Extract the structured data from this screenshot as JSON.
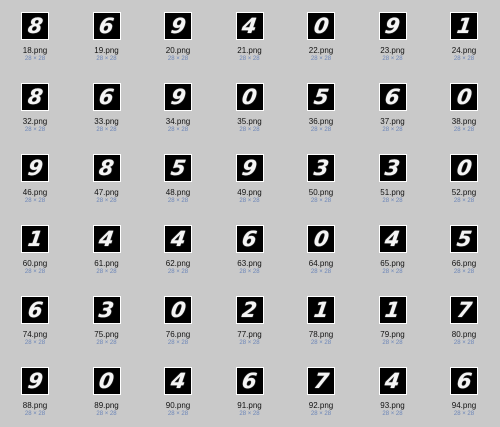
{
  "colors": {
    "background": "#c9c9c9",
    "dims_text": "#6b85b8"
  },
  "files": [
    {
      "name": "18.png",
      "dims": "28 × 28",
      "digit": "8"
    },
    {
      "name": "19.png",
      "dims": "28 × 28",
      "digit": "6"
    },
    {
      "name": "20.png",
      "dims": "28 × 28",
      "digit": "9"
    },
    {
      "name": "21.png",
      "dims": "28 × 28",
      "digit": "4"
    },
    {
      "name": "22.png",
      "dims": "28 × 28",
      "digit": "0"
    },
    {
      "name": "23.png",
      "dims": "28 × 28",
      "digit": "9"
    },
    {
      "name": "24.png",
      "dims": "28 × 28",
      "digit": "1"
    },
    {
      "name": "32.png",
      "dims": "28 × 28",
      "digit": "8"
    },
    {
      "name": "33.png",
      "dims": "28 × 28",
      "digit": "6"
    },
    {
      "name": "34.png",
      "dims": "28 × 28",
      "digit": "9"
    },
    {
      "name": "35.png",
      "dims": "28 × 28",
      "digit": "0"
    },
    {
      "name": "36.png",
      "dims": "28 × 28",
      "digit": "5"
    },
    {
      "name": "37.png",
      "dims": "28 × 28",
      "digit": "6"
    },
    {
      "name": "38.png",
      "dims": "28 × 28",
      "digit": "0"
    },
    {
      "name": "46.png",
      "dims": "28 × 28",
      "digit": "9"
    },
    {
      "name": "47.png",
      "dims": "28 × 28",
      "digit": "8"
    },
    {
      "name": "48.png",
      "dims": "28 × 28",
      "digit": "5"
    },
    {
      "name": "49.png",
      "dims": "28 × 28",
      "digit": "9"
    },
    {
      "name": "50.png",
      "dims": "28 × 28",
      "digit": "3"
    },
    {
      "name": "51.png",
      "dims": "28 × 28",
      "digit": "3"
    },
    {
      "name": "52.png",
      "dims": "28 × 28",
      "digit": "0"
    },
    {
      "name": "60.png",
      "dims": "28 × 28",
      "digit": "1"
    },
    {
      "name": "61.png",
      "dims": "28 × 28",
      "digit": "4"
    },
    {
      "name": "62.png",
      "dims": "28 × 28",
      "digit": "4"
    },
    {
      "name": "63.png",
      "dims": "28 × 28",
      "digit": "6"
    },
    {
      "name": "64.png",
      "dims": "28 × 28",
      "digit": "0"
    },
    {
      "name": "65.png",
      "dims": "28 × 28",
      "digit": "4"
    },
    {
      "name": "66.png",
      "dims": "28 × 28",
      "digit": "5"
    },
    {
      "name": "74.png",
      "dims": "28 × 28",
      "digit": "6"
    },
    {
      "name": "75.png",
      "dims": "28 × 28",
      "digit": "3"
    },
    {
      "name": "76.png",
      "dims": "28 × 28",
      "digit": "0"
    },
    {
      "name": "77.png",
      "dims": "28 × 28",
      "digit": "2"
    },
    {
      "name": "78.png",
      "dims": "28 × 28",
      "digit": "1"
    },
    {
      "name": "79.png",
      "dims": "28 × 28",
      "digit": "1"
    },
    {
      "name": "80.png",
      "dims": "28 × 28",
      "digit": "7"
    },
    {
      "name": "88.png",
      "dims": "28 × 28",
      "digit": "9"
    },
    {
      "name": "89.png",
      "dims": "28 × 28",
      "digit": "0"
    },
    {
      "name": "90.png",
      "dims": "28 × 28",
      "digit": "4"
    },
    {
      "name": "91.png",
      "dims": "28 × 28",
      "digit": "6"
    },
    {
      "name": "92.png",
      "dims": "28 × 28",
      "digit": "7"
    },
    {
      "name": "93.png",
      "dims": "28 × 28",
      "digit": "4"
    },
    {
      "name": "94.png",
      "dims": "28 × 28",
      "digit": "6"
    }
  ]
}
